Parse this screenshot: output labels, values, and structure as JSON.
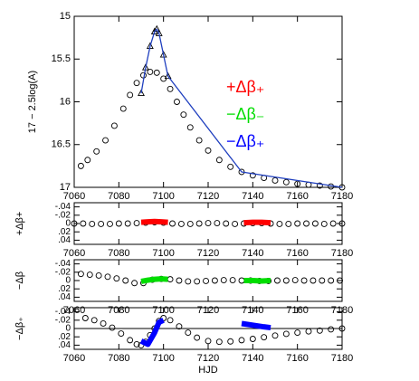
{
  "chart_data": [
    {
      "type": "scatter",
      "ylabel": "17 − 2.5log(A)",
      "xlim": [
        7060,
        7180
      ],
      "xticks": [
        7060,
        7080,
        7100,
        7120,
        7140,
        7160,
        7180
      ],
      "ylim": [
        17,
        15
      ],
      "yticks": [
        15,
        15.5,
        16,
        16.5,
        17
      ],
      "series": [
        {
          "marker": "circle",
          "color": "#000000",
          "x": [
            7063,
            7066,
            7070,
            7074,
            7078,
            7082,
            7085,
            7088,
            7091,
            7094,
            7097,
            7100,
            7103,
            7106,
            7109,
            7112,
            7116,
            7120,
            7125,
            7130,
            7135,
            7140,
            7145,
            7150,
            7155,
            7160,
            7165,
            7170,
            7175,
            7180
          ],
          "values": [
            16.75,
            16.68,
            16.58,
            16.45,
            16.28,
            16.08,
            15.92,
            15.78,
            15.69,
            15.65,
            15.66,
            15.73,
            15.85,
            16.0,
            16.15,
            16.3,
            16.45,
            16.57,
            16.68,
            16.76,
            16.82,
            16.86,
            16.89,
            16.92,
            16.94,
            16.96,
            16.97,
            16.98,
            16.99,
            17.0
          ]
        },
        {
          "marker": "triangle",
          "color": "#000000",
          "x": [
            7090,
            7092,
            7094,
            7096,
            7097,
            7098,
            7100,
            7102
          ],
          "values": [
            15.9,
            15.6,
            15.35,
            15.18,
            15.15,
            15.2,
            15.45,
            15.7
          ]
        },
        {
          "marker": "line",
          "color": "#1f3fbf",
          "x": [
            7090,
            7092,
            7094,
            7096,
            7097,
            7098,
            7100,
            7102,
            7135,
            7180
          ],
          "values": [
            15.9,
            15.6,
            15.35,
            15.18,
            15.15,
            15.2,
            15.45,
            15.7,
            16.82,
            17.0
          ]
        }
      ],
      "annotations": [
        {
          "text": "+Δβ₊",
          "color": "#ff0000"
        },
        {
          "text": "−Δβ₋",
          "color": "#00dd00"
        },
        {
          "text": "−Δβ₊",
          "color": "#0000ff"
        }
      ]
    },
    {
      "type": "scatter",
      "ylabel": "+Δβ+",
      "xlim": [
        7060,
        7180
      ],
      "xticks": [
        7060,
        7080,
        7100,
        7120,
        7140,
        7160,
        7180
      ],
      "ylim": [
        0.05,
        -0.05
      ],
      "yticks": [
        {
          "value": -0.04,
          "label": "-.04"
        },
        {
          "value": -0.02,
          "label": "-.02"
        },
        0,
        {
          "value": 0.02,
          "label": ".02"
        },
        {
          "value": 0.04,
          "label": ".04"
        }
      ],
      "series": [
        {
          "marker": "circle",
          "color": "#000000",
          "x": [
            7060,
            7064,
            7068,
            7072,
            7076,
            7080,
            7084,
            7088,
            7092,
            7096,
            7100,
            7104,
            7108,
            7112,
            7116,
            7120,
            7124,
            7128,
            7132,
            7136,
            7140,
            7144,
            7148,
            7152,
            7156,
            7160,
            7164,
            7168,
            7172,
            7176,
            7180
          ],
          "values": [
            0.0,
            0.0,
            0.001,
            0.001,
            0.001,
            0.0,
            0.0,
            -0.001,
            -0.002,
            -0.003,
            -0.002,
            0.0,
            0.001,
            0.001,
            0.0,
            -0.001,
            -0.001,
            0.0,
            0.001,
            0.0,
            -0.001,
            -0.001,
            0.0,
            0.001,
            0.001,
            0.0,
            0.0,
            0.0,
            0.001,
            0.0,
            0.0
          ]
        },
        {
          "marker": "thick",
          "color": "#ff0000",
          "x": [
            7090,
            7093,
            7096,
            7099,
            7102
          ],
          "values": [
            -0.003,
            -0.004,
            -0.005,
            -0.004,
            -0.003
          ]
        },
        {
          "marker": "thick",
          "color": "#ff0000",
          "x": [
            7136,
            7140,
            7144,
            7148
          ],
          "values": [
            -0.002,
            -0.003,
            -0.003,
            -0.002
          ]
        }
      ]
    },
    {
      "type": "scatter",
      "ylabel": "−Δβ",
      "xlim": [
        7060,
        7180
      ],
      "xticks": [
        7060,
        7080,
        7100,
        7120,
        7140,
        7160,
        7180
      ],
      "ylim": [
        0.05,
        -0.05
      ],
      "yticks": [
        {
          "value": -0.04,
          "label": "-.04"
        },
        {
          "value": -0.02,
          "label": "-.02"
        },
        0,
        {
          "value": 0.02,
          "label": ".02"
        },
        {
          "value": 0.04,
          "label": ".04"
        }
      ],
      "series": [
        {
          "marker": "circle",
          "color": "#000000",
          "x": [
            7063,
            7067,
            7071,
            7075,
            7079,
            7083,
            7087,
            7091,
            7095,
            7099,
            7103,
            7107,
            7111,
            7115,
            7119,
            7123,
            7127,
            7131,
            7135,
            7139,
            7143,
            7147,
            7151,
            7155,
            7159,
            7163,
            7167,
            7171,
            7175,
            7179
          ],
          "values": [
            -0.016,
            -0.014,
            -0.012,
            -0.009,
            -0.005,
            0.0,
            0.006,
            0.006,
            -0.002,
            -0.004,
            -0.003,
            0.0,
            0.002,
            0.002,
            0.001,
            0.0,
            -0.001,
            -0.001,
            0.0,
            0.0,
            0.001,
            0.001,
            0.0,
            0.0,
            -0.001,
            0.0,
            0.0,
            0.0,
            0.0,
            0.0
          ]
        },
        {
          "marker": "thick",
          "color": "#00dd00",
          "x": [
            7090,
            7093,
            7096,
            7099,
            7102
          ],
          "values": [
            0.002,
            -0.001,
            -0.003,
            -0.004,
            -0.003
          ]
        },
        {
          "marker": "thick",
          "color": "#00dd00",
          "x": [
            7136,
            7140,
            7144,
            7148
          ],
          "values": [
            0.0,
            0.0,
            0.001,
            0.0
          ]
        }
      ]
    },
    {
      "type": "scatter",
      "ylabel": "−Δβ₊",
      "xlabel": "HJD",
      "zero_line": true,
      "xlim": [
        7060,
        7180
      ],
      "xticks": [
        7060,
        7080,
        7100,
        7120,
        7140,
        7160,
        7180
      ],
      "ylim": [
        0.05,
        -0.05
      ],
      "yticks": [
        {
          "value": -0.04,
          "label": "-.04"
        },
        {
          "value": -0.02,
          "label": "-.02"
        },
        0,
        {
          "value": 0.02,
          "label": ".02"
        },
        {
          "value": 0.04,
          "label": ".04"
        }
      ],
      "series": [
        {
          "marker": "circle",
          "color": "#000000",
          "x": [
            7065,
            7069,
            7073,
            7077,
            7081,
            7085,
            7088,
            7090,
            7092,
            7094,
            7096,
            7098,
            7100,
            7103,
            7107,
            7111,
            7115,
            7120,
            7125,
            7130,
            7135,
            7140,
            7145,
            7150,
            7155,
            7160,
            7165,
            7170,
            7175,
            7180
          ],
          "values": [
            -0.025,
            -0.02,
            -0.012,
            -0.002,
            0.012,
            0.028,
            0.038,
            0.04,
            0.032,
            0.016,
            0.0,
            -0.018,
            -0.025,
            -0.02,
            -0.005,
            0.01,
            0.022,
            0.03,
            0.032,
            0.031,
            0.028,
            0.025,
            0.021,
            0.017,
            0.013,
            0.01,
            0.007,
            0.005,
            0.002,
            0.0
          ]
        },
        {
          "marker": "thick",
          "color": "#0000ff",
          "x": [
            7090,
            7093,
            7096,
            7098,
            7100
          ],
          "values": [
            0.03,
            0.038,
            0.01,
            -0.015,
            -0.02
          ]
        },
        {
          "marker": "thick",
          "color": "#0000ff",
          "x": [
            7135,
            7140,
            7145,
            7148
          ],
          "values": [
            -0.012,
            -0.008,
            -0.004,
            -0.002
          ]
        }
      ]
    }
  ]
}
